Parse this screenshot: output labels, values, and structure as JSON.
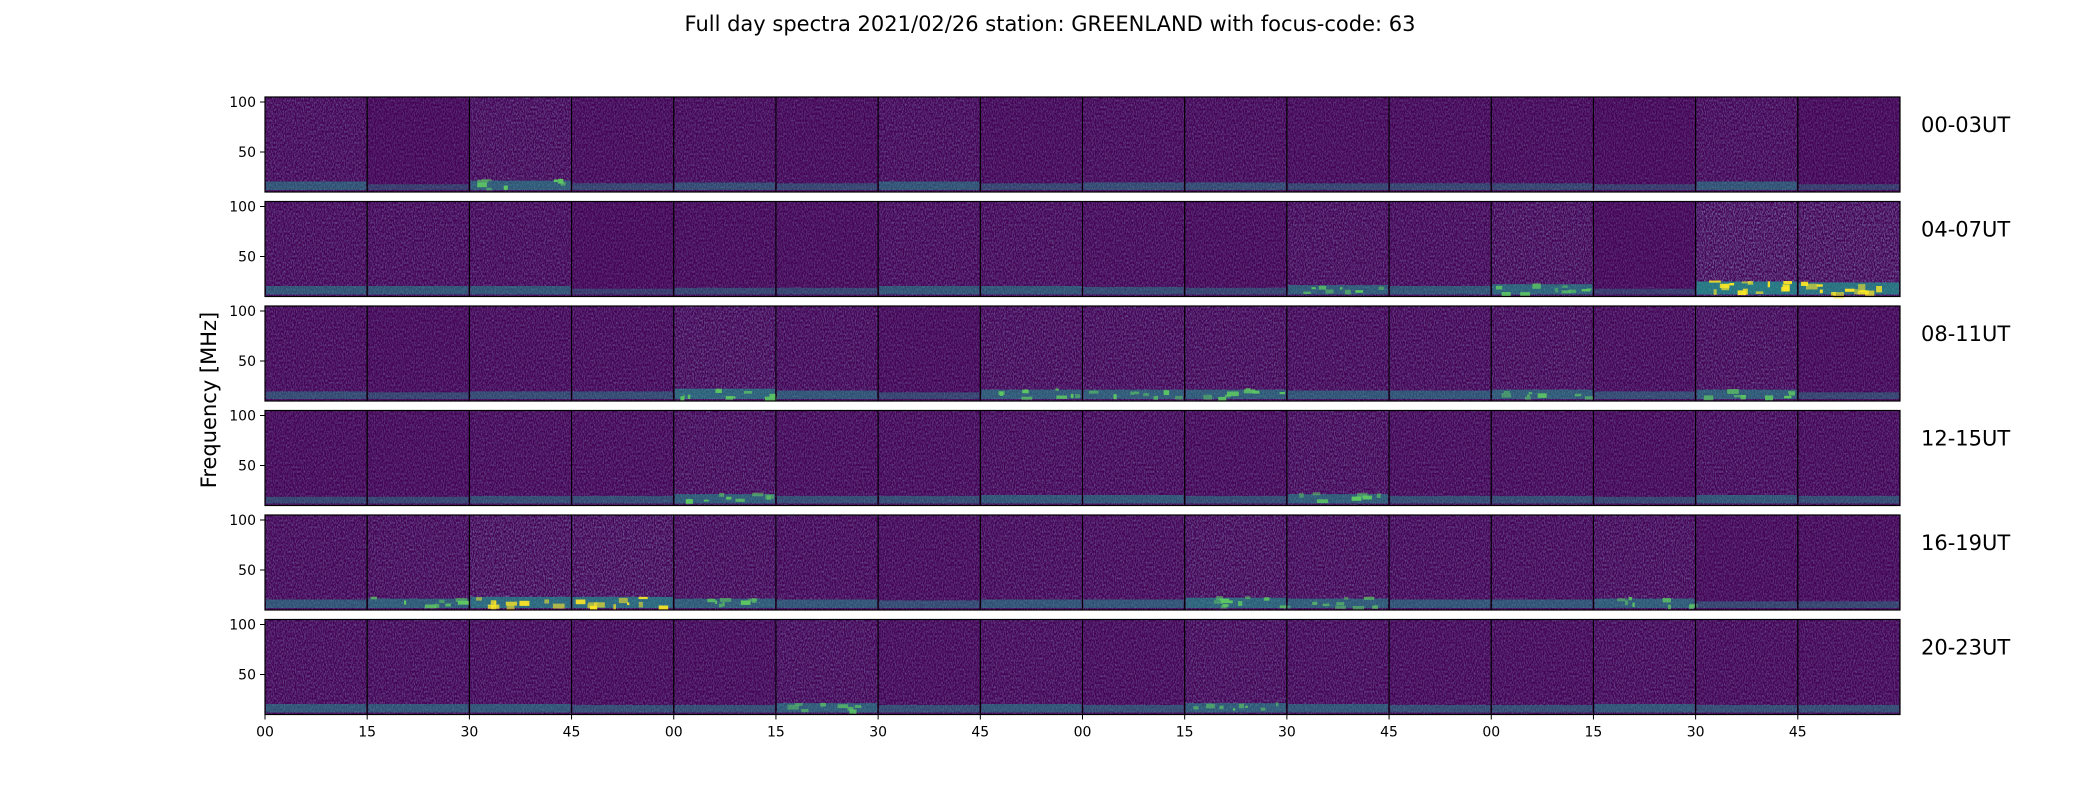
{
  "chart_data": {
    "type": "heatmap",
    "title": "Full day spectra 2021/02/26 station: GREENLAND with focus-code: 63",
    "ylabel": "Frequency [MHz]",
    "y_ticks": [
      100,
      50
    ],
    "ylim": [
      10,
      105
    ],
    "x_ticks": [
      "00",
      "15",
      "30",
      "45",
      "00",
      "15",
      "30",
      "45",
      "00",
      "15",
      "30",
      "45",
      "00",
      "15",
      "30",
      "45"
    ],
    "panels_per_row": 16,
    "panel_minutes": 15,
    "colormap": "viridis",
    "colors": {
      "background": "#440154",
      "low": "#46327e",
      "mid": "#21918c",
      "high": "#fde725",
      "frame": "#000000"
    },
    "rows": [
      {
        "label": "00-03UT",
        "activity": [
          0.5,
          0.2,
          0.6,
          0.3,
          0.4,
          0.3,
          0.5,
          0.3,
          0.4,
          0.4,
          0.3,
          0.3,
          0.3,
          0.2,
          0.5,
          0.2
        ]
      },
      {
        "label": "04-07UT",
        "activity": [
          0.5,
          0.5,
          0.5,
          0.2,
          0.3,
          0.3,
          0.5,
          0.5,
          0.4,
          0.3,
          0.6,
          0.5,
          0.7,
          0.2,
          1.0,
          0.9
        ]
      },
      {
        "label": "08-11UT",
        "activity": [
          0.4,
          0.3,
          0.4,
          0.4,
          0.7,
          0.5,
          0.3,
          0.6,
          0.6,
          0.6,
          0.5,
          0.5,
          0.6,
          0.4,
          0.6,
          0.3
        ]
      },
      {
        "label": "12-15UT",
        "activity": [
          0.3,
          0.3,
          0.4,
          0.4,
          0.6,
          0.4,
          0.4,
          0.5,
          0.5,
          0.4,
          0.6,
          0.4,
          0.4,
          0.3,
          0.5,
          0.4
        ]
      },
      {
        "label": "16-19UT",
        "activity": [
          0.5,
          0.6,
          0.8,
          0.8,
          0.6,
          0.5,
          0.4,
          0.5,
          0.5,
          0.7,
          0.6,
          0.5,
          0.5,
          0.6,
          0.3,
          0.3
        ]
      },
      {
        "label": "20-23UT",
        "activity": [
          0.5,
          0.5,
          0.5,
          0.4,
          0.4,
          0.6,
          0.4,
          0.5,
          0.4,
          0.6,
          0.5,
          0.4,
          0.4,
          0.5,
          0.4,
          0.4
        ]
      }
    ]
  }
}
